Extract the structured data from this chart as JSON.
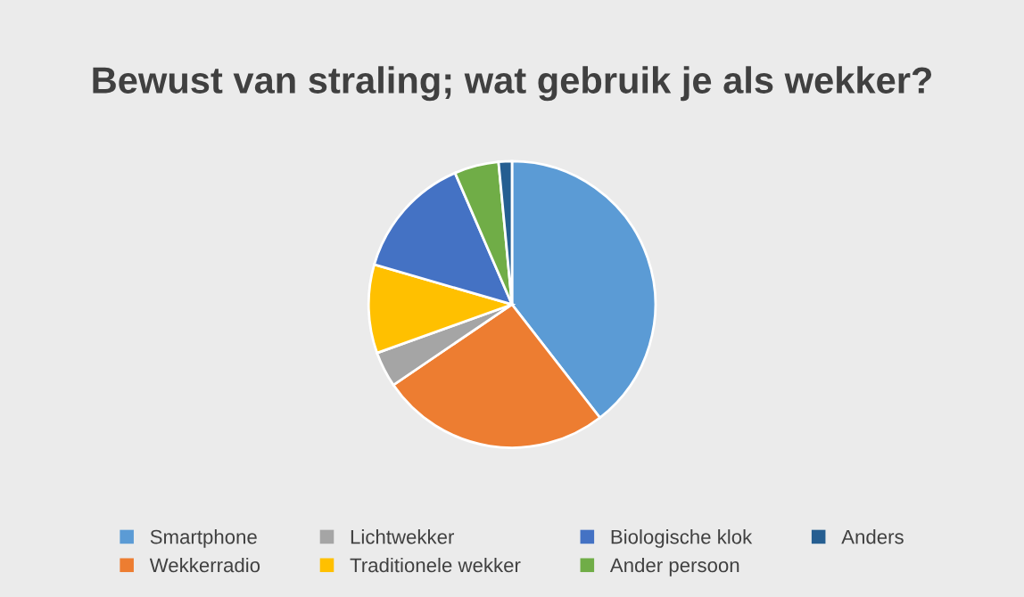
{
  "chart_data": {
    "type": "pie",
    "title": "Bewust van straling; wat gebruik je als wekker?",
    "categories": [
      "Smartphone",
      "Wekkerradio",
      "Lichtwekker",
      "Traditionele wekker",
      "Biologische klok",
      "Ander persoon",
      "Anders"
    ],
    "values": [
      39.5,
      26,
      4,
      10,
      14,
      5,
      1.5
    ],
    "colors": [
      "#5b9bd5",
      "#ed7d31",
      "#a5a5a5",
      "#ffc000",
      "#4472c4",
      "#70ad47",
      "#255e91"
    ],
    "legend": "bottom"
  }
}
